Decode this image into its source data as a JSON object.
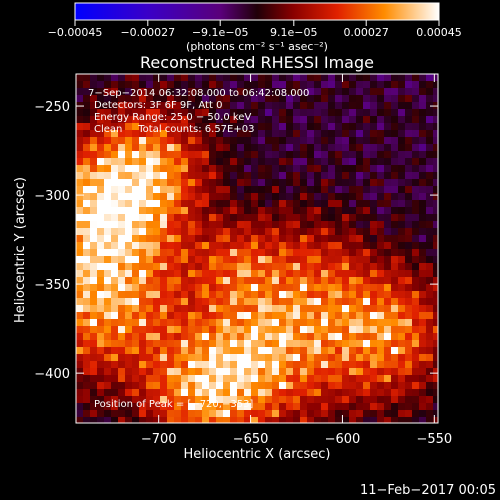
{
  "chart_data": {
    "type": "heatmap",
    "title": "Reconstructed RHESSI Image",
    "xlabel": "Heliocentric X (arcsec)",
    "ylabel": "Heliocentric Y (arcsec)",
    "xlim": [
      -745,
      -548
    ],
    "ylim": [
      -428,
      -232
    ],
    "x_ticks": [
      -700,
      -650,
      -600,
      -550
    ],
    "x_tick_labels": [
      "−700",
      "−650",
      "−600",
      "−550"
    ],
    "y_ticks": [
      -250,
      -300,
      -350,
      -400
    ],
    "y_tick_labels": [
      "−250",
      "−300",
      "−350",
      "−400"
    ],
    "colorbar": {
      "range": [
        -0.00045,
        0.00045
      ],
      "ticks": [
        -0.00045,
        -0.00027,
        -9.1e-05,
        9.1e-05,
        0.00027,
        0.00045
      ],
      "tick_labels": [
        "−0.00045",
        "−0.00027",
        "−9.1e−05",
        "9.1e−05",
        "0.00027",
        "0.00045"
      ],
      "units": "(photons cm⁻² s⁻¹ asec⁻²)"
    },
    "annotations": {
      "time": "7−Sep−2014 06:32:08.000 to 06:42:08.000",
      "detectors": "Detectors: 3F 6F 9F, Att 0",
      "energy": "Energy Range: 25.0 − 50.0 keV",
      "clean": "Clean     Total counts: 6.57E+03",
      "peak": "Position of Peak = [−720,−353]"
    },
    "peak": [
      -720,
      -353
    ],
    "grid": false
  },
  "timestamp": "11−Feb−2017 00:05"
}
